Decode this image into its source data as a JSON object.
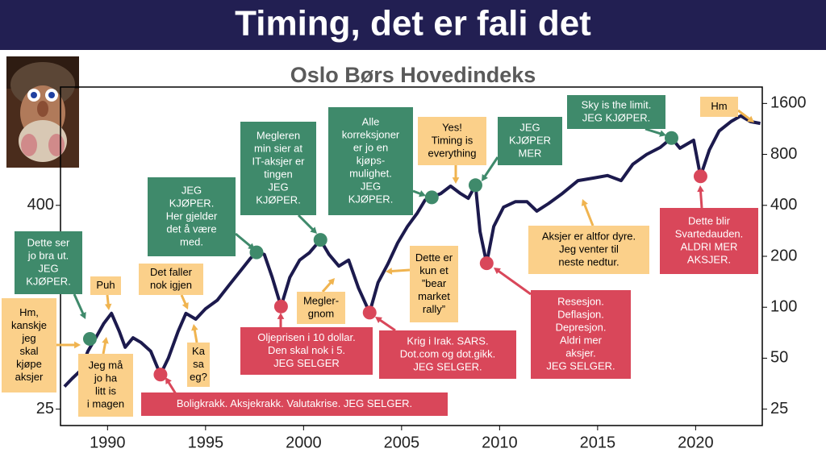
{
  "title": "Timing, det er fali det",
  "chart_data": {
    "type": "line",
    "title": "Oslo Børs Hovedindeks",
    "log_scale": true,
    "grid": false,
    "color": "#1c1a4d",
    "x": [
      1987.8,
      1988.2,
      1988.6,
      1989.0,
      1989.4,
      1989.8,
      1990.2,
      1990.6,
      1990.9,
      1991.3,
      1991.7,
      1992.2,
      1992.7,
      1993.1,
      1993.6,
      1994.0,
      1994.5,
      1995.0,
      1995.6,
      1996.2,
      1996.8,
      1997.3,
      1997.6,
      1998.0,
      1998.4,
      1998.85,
      1999.3,
      1999.8,
      2000.3,
      2000.86,
      2001.3,
      2001.8,
      2002.3,
      2002.8,
      2003.37,
      2003.8,
      2004.3,
      2004.8,
      2005.3,
      2005.8,
      2006.2,
      2006.54,
      2007.0,
      2007.5,
      2008.0,
      2008.4,
      2008.77,
      2009.0,
      2009.34,
      2009.7,
      2010.2,
      2010.8,
      2011.4,
      2011.9,
      2012.5,
      2013.2,
      2014.0,
      2014.8,
      2015.5,
      2016.2,
      2016.8,
      2017.5,
      2018.2,
      2018.77,
      2019.2,
      2019.9,
      2020.25,
      2020.7,
      2021.2,
      2021.8,
      2022.3,
      2022.8,
      2023.3
    ],
    "values": [
      34,
      38,
      42,
      55,
      66,
      80,
      92,
      72,
      58,
      66,
      62,
      55,
      40,
      50,
      72,
      92,
      85,
      98,
      110,
      135,
      165,
      195,
      211,
      205,
      150,
      101,
      150,
      190,
      210,
      250,
      205,
      175,
      190,
      130,
      93,
      140,
      180,
      240,
      300,
      360,
      430,
      446,
      470,
      520,
      470,
      440,
      526,
      280,
      182,
      300,
      390,
      420,
      420,
      370,
      410,
      470,
      560,
      580,
      600,
      560,
      700,
      800,
      880,
      1000,
      870,
      970,
      594,
      850,
      1100,
      1250,
      1350,
      1250,
      1220
    ],
    "xlim": [
      1987.6,
      2023.4
    ],
    "xticks": [
      1990,
      1995,
      2000,
      2005,
      2010,
      2015,
      2020
    ],
    "ylim": [
      20,
      2000
    ],
    "yticks": [
      25,
      50,
      100,
      200,
      400,
      800,
      1600
    ],
    "yticks_left": [
      25,
      400
    ],
    "annotations": [
      {
        "lines": [
          "Hm,",
          "kanskje",
          "jeg",
          "skal",
          "kjøpe",
          "aksjer"
        ],
        "color": "#fbd08a",
        "text_color": "#000000"
      },
      {
        "lines": [
          "Dette ser",
          "jo bra ut.",
          "JEG",
          "KJØPER."
        ],
        "color": "#3f8a6b",
        "text_color": "#ffffff",
        "x": 1989.1,
        "value": 65
      },
      {
        "lines": [
          "Puh"
        ],
        "color": "#fbd08a",
        "text_color": "#000000"
      },
      {
        "lines": [
          "Jeg må",
          "jo ha",
          "litt is",
          "i magen"
        ],
        "color": "#fbd08a",
        "text_color": "#000000"
      },
      {
        "lines": [
          "Det faller",
          "nok igjen"
        ],
        "color": "#fbd08a",
        "text_color": "#000000"
      },
      {
        "lines": [
          "Ka",
          "sa",
          "eg?"
        ],
        "color": "#fbd08a",
        "text_color": "#000000"
      },
      {
        "lines": [
          "Boligkrakk. Aksjekrakk. Valutakrise. JEG SELGER."
        ],
        "color": "#d9475a",
        "text_color": "#ffffff",
        "x": 1992.7,
        "value": 40
      },
      {
        "lines": [
          "JEG",
          "KJØPER.",
          "Her gjelder",
          "det å være",
          "med."
        ],
        "color": "#3f8a6b",
        "text_color": "#ffffff",
        "x": 1997.6,
        "value": 211
      },
      {
        "lines": [
          "Megleren",
          "min sier at",
          "IT-aksjer er",
          "tingen",
          "JEG",
          "KJØPER."
        ],
        "color": "#3f8a6b",
        "text_color": "#ffffff",
        "x": 2000.86,
        "value": 250
      },
      {
        "lines": [
          "Oljeprisen i 10 dollar.",
          "Den skal nok i 5.",
          "JEG SELGER"
        ],
        "color": "#d9475a",
        "text_color": "#ffffff",
        "x": 1998.85,
        "value": 101
      },
      {
        "lines": [
          "Megler-",
          "gnom"
        ],
        "color": "#fbd08a",
        "text_color": "#000000"
      },
      {
        "lines": [
          "Alle",
          "korreksjoner",
          "er jo en",
          "kjøps-",
          "mulighet.",
          "JEG",
          "KJØPER."
        ],
        "color": "#3f8a6b",
        "text_color": "#ffffff",
        "x": 2006.54,
        "value": 446
      },
      {
        "lines": [
          "Krig i Irak. SARS.",
          "Dot.com og dot.gikk.",
          "JEG SELGER."
        ],
        "color": "#d9475a",
        "text_color": "#ffffff",
        "x": 2003.37,
        "value": 93
      },
      {
        "lines": [
          "Dette er",
          "kun et",
          "”bear",
          "market",
          "rally”"
        ],
        "color": "#fbd08a",
        "text_color": "#000000"
      },
      {
        "lines": [
          "Yes!",
          "Timing is",
          "everything"
        ],
        "color": "#fbd08a",
        "text_color": "#000000"
      },
      {
        "lines": [
          "JEG",
          "KJØPER",
          "MER"
        ],
        "color": "#3f8a6b",
        "text_color": "#ffffff",
        "x": 2008.77,
        "value": 526
      },
      {
        "lines": [
          "Resesjon.",
          "Deflasjon.",
          "Depresjon.",
          "Aldri mer",
          "aksjer.",
          "JEG SELGER."
        ],
        "color": "#d9475a",
        "text_color": "#ffffff",
        "x": 2009.34,
        "value": 182
      },
      {
        "lines": [
          "Aksjer er altfor dyre.",
          "Jeg venter til",
          "neste nedtur."
        ],
        "color": "#fbd08a",
        "text_color": "#000000"
      },
      {
        "lines": [
          "Sky is the limit.",
          "JEG KJØPER."
        ],
        "color": "#3f8a6b",
        "text_color": "#ffffff",
        "x": 2018.77,
        "value": 1000
      },
      {
        "lines": [
          "Dette blir",
          "Svartedauden.",
          "ALDRI MER",
          "AKSJER."
        ],
        "color": "#d9475a",
        "text_color": "#ffffff",
        "x": 2020.25,
        "value": 594
      },
      {
        "lines": [
          "Hm"
        ],
        "color": "#fbd08a",
        "text_color": "#000000"
      }
    ]
  }
}
